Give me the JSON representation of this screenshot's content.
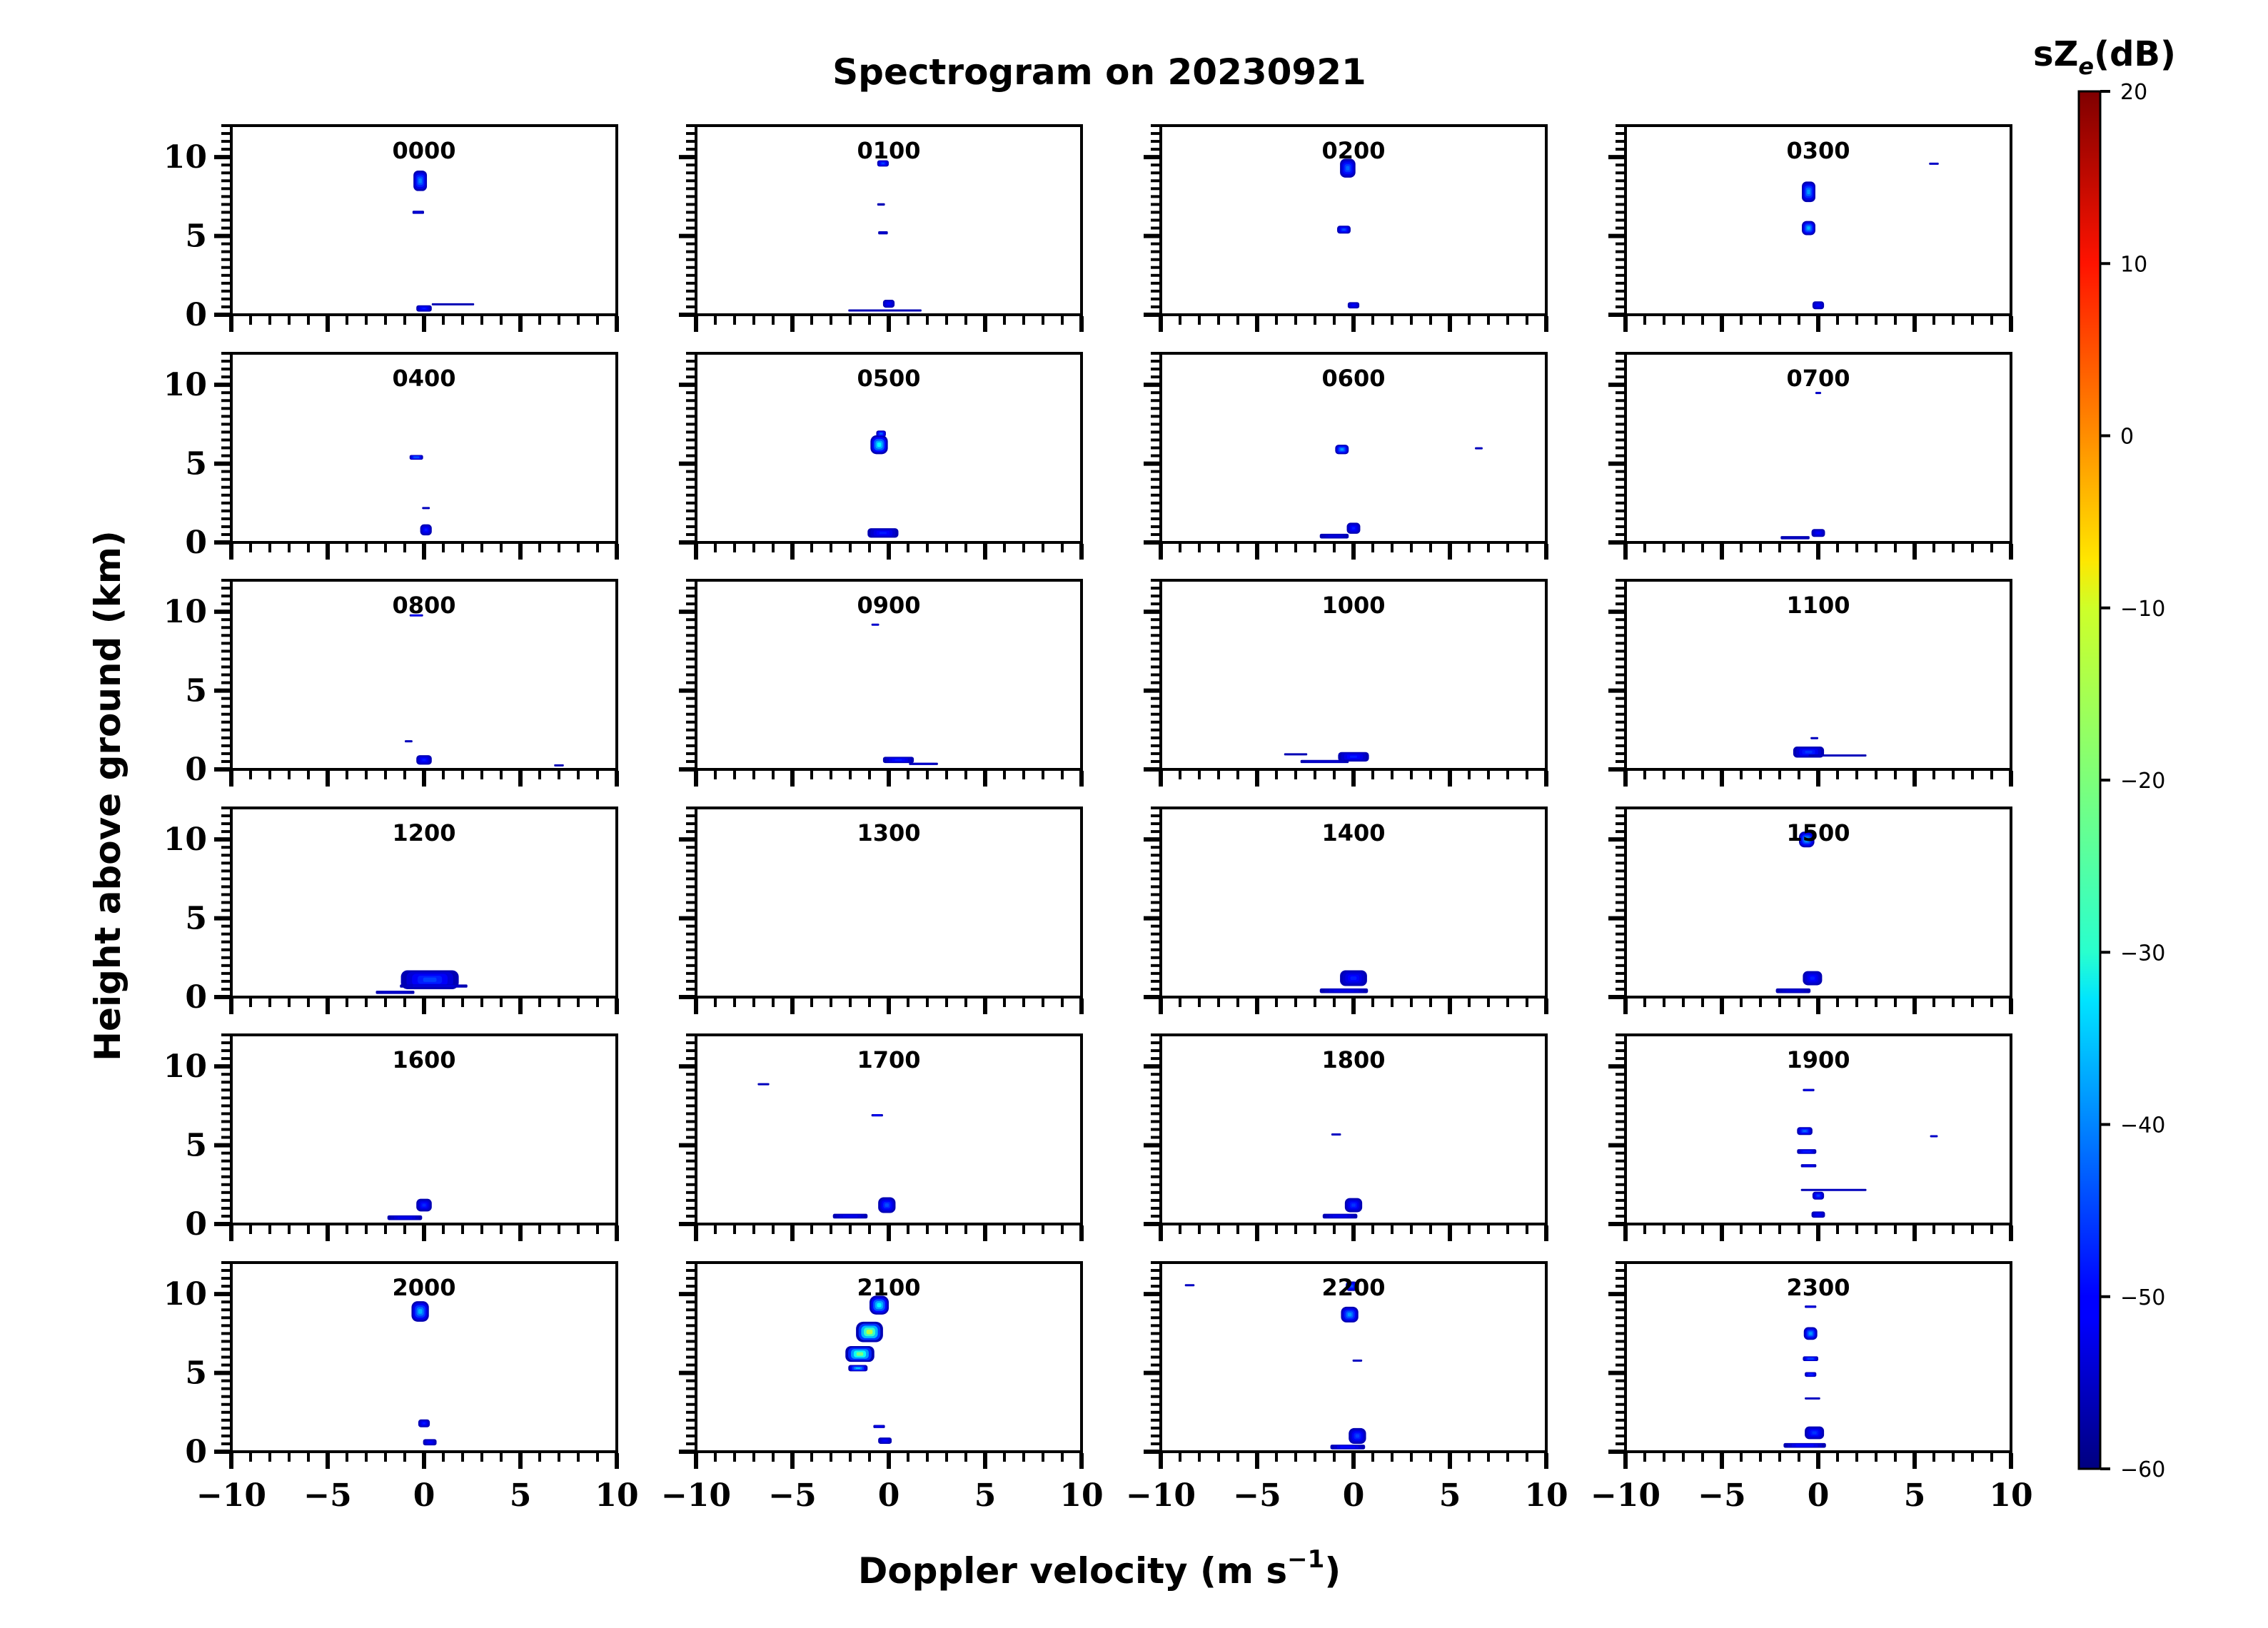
{
  "chart_data": {
    "type": "heatmap",
    "title": "Spectrogram on 20230921",
    "xlabel": "Doppler velocity (m s",
    "xlabel_sup": "−1",
    "xlabel_close": ")",
    "ylabel": "Height above ground (km)",
    "xlim": [
      -10,
      10
    ],
    "ylim": [
      0,
      12
    ],
    "x_ticks": [
      -10,
      -5,
      0,
      5,
      10
    ],
    "x_tick_labels": [
      "−10",
      "−5",
      "0",
      "5",
      "10"
    ],
    "y_ticks": [
      0,
      5,
      10
    ],
    "y_tick_labels": [
      "0",
      "5",
      "10"
    ],
    "colorbar": {
      "label_main": "sZ",
      "label_sub": "e",
      "label_unit": "(dB)",
      "min": -60,
      "max": 20,
      "ticks": [
        20,
        10,
        0,
        -10,
        -20,
        -30,
        -40,
        -50,
        -60
      ],
      "tick_labels": [
        "20",
        "10",
        "0",
        "−10",
        "−20",
        "−30",
        "−40",
        "−50",
        "−60"
      ],
      "colormap": "jet"
    },
    "panels": [
      {
        "time": "0000",
        "blobs": [
          {
            "v": -0.2,
            "h": 8.5,
            "dv": 0.7,
            "dh": 1.3,
            "db": -40
          },
          {
            "v": -0.3,
            "h": 6.5,
            "dv": 0.6,
            "dh": 0.2,
            "db": -50
          },
          {
            "v": 0.0,
            "h": 0.4,
            "dv": 0.8,
            "dh": 0.4,
            "db": -48
          },
          {
            "v": 1.5,
            "h": 0.7,
            "dv": 2.2,
            "dh": 0.06,
            "db": -55
          }
        ]
      },
      {
        "time": "0100",
        "blobs": [
          {
            "v": -0.3,
            "h": 9.6,
            "dv": 0.6,
            "dh": 0.4,
            "db": -45
          },
          {
            "v": -0.4,
            "h": 7.0,
            "dv": 0.4,
            "dh": 0.15,
            "db": -55
          },
          {
            "v": -0.3,
            "h": 5.2,
            "dv": 0.5,
            "dh": 0.2,
            "db": -52
          },
          {
            "v": 0.0,
            "h": 0.7,
            "dv": 0.6,
            "dh": 0.5,
            "db": -50
          },
          {
            "v": -0.2,
            "h": 0.3,
            "dv": 3.8,
            "dh": 0.08,
            "db": -55
          }
        ]
      },
      {
        "time": "0200",
        "blobs": [
          {
            "v": -0.3,
            "h": 9.3,
            "dv": 0.8,
            "dh": 1.2,
            "db": -42
          },
          {
            "v": -0.5,
            "h": 5.4,
            "dv": 0.7,
            "dh": 0.5,
            "db": -44
          },
          {
            "v": 0.0,
            "h": 0.6,
            "dv": 0.6,
            "dh": 0.4,
            "db": -50
          }
        ]
      },
      {
        "time": "0300",
        "blobs": [
          {
            "v": -0.5,
            "h": 7.8,
            "dv": 0.7,
            "dh": 1.3,
            "db": -38
          },
          {
            "v": -0.5,
            "h": 5.5,
            "dv": 0.7,
            "dh": 0.9,
            "db": -36
          },
          {
            "v": 0.0,
            "h": 0.6,
            "dv": 0.6,
            "dh": 0.5,
            "db": -50
          },
          {
            "v": 6.0,
            "h": 9.6,
            "dv": 0.5,
            "dh": 0.1,
            "db": -48
          }
        ]
      },
      {
        "time": "0400",
        "blobs": [
          {
            "v": -0.4,
            "h": 5.4,
            "dv": 0.7,
            "dh": 0.3,
            "db": -40
          },
          {
            "v": 0.1,
            "h": 2.2,
            "dv": 0.4,
            "dh": 0.1,
            "db": -52
          },
          {
            "v": 0.1,
            "h": 0.8,
            "dv": 0.6,
            "dh": 0.7,
            "db": -48
          }
        ]
      },
      {
        "time": "0500",
        "blobs": [
          {
            "v": -0.5,
            "h": 6.2,
            "dv": 0.9,
            "dh": 1.2,
            "db": -30
          },
          {
            "v": -0.4,
            "h": 6.9,
            "dv": 0.5,
            "dh": 0.4,
            "db": -42
          },
          {
            "v": -0.3,
            "h": 0.6,
            "dv": 1.6,
            "dh": 0.6,
            "db": -48
          }
        ]
      },
      {
        "time": "0600",
        "blobs": [
          {
            "v": -0.6,
            "h": 5.9,
            "dv": 0.7,
            "dh": 0.6,
            "db": -38
          },
          {
            "v": 0.0,
            "h": 0.9,
            "dv": 0.7,
            "dh": 0.7,
            "db": -48
          },
          {
            "v": -1.0,
            "h": 0.4,
            "dv": 1.5,
            "dh": 0.3,
            "db": -52
          },
          {
            "v": 6.5,
            "h": 6.0,
            "dv": 0.4,
            "dh": 0.08,
            "db": -52
          }
        ]
      },
      {
        "time": "0700",
        "blobs": [
          {
            "v": 0.0,
            "h": 9.5,
            "dv": 0.3,
            "dh": 0.1,
            "db": -48
          },
          {
            "v": 0.0,
            "h": 0.6,
            "dv": 0.7,
            "dh": 0.5,
            "db": -50
          },
          {
            "v": -1.2,
            "h": 0.3,
            "dv": 1.5,
            "dh": 0.2,
            "db": -54
          }
        ]
      },
      {
        "time": "0800",
        "blobs": [
          {
            "v": -0.4,
            "h": 9.8,
            "dv": 0.7,
            "dh": 0.08,
            "db": -35
          },
          {
            "v": -0.8,
            "h": 1.8,
            "dv": 0.4,
            "dh": 0.1,
            "db": -52
          },
          {
            "v": 0.0,
            "h": 0.6,
            "dv": 0.8,
            "dh": 0.6,
            "db": -48
          },
          {
            "v": 7.0,
            "h": 0.3,
            "dv": 0.5,
            "dh": 0.05,
            "db": -55
          }
        ]
      },
      {
        "time": "0900",
        "blobs": [
          {
            "v": -0.7,
            "h": 9.2,
            "dv": 0.4,
            "dh": 0.1,
            "db": -46
          },
          {
            "v": 0.5,
            "h": 0.6,
            "dv": 1.6,
            "dh": 0.4,
            "db": -48
          },
          {
            "v": 1.8,
            "h": 0.35,
            "dv": 1.5,
            "dh": 0.15,
            "db": -52
          }
        ]
      },
      {
        "time": "1000",
        "blobs": [
          {
            "v": 0.0,
            "h": 0.8,
            "dv": 1.6,
            "dh": 0.6,
            "db": -48
          },
          {
            "v": -1.5,
            "h": 0.5,
            "dv": 2.5,
            "dh": 0.2,
            "db": -52
          },
          {
            "v": -3.0,
            "h": 1.0,
            "dv": 1.2,
            "dh": 0.05,
            "db": -55
          }
        ]
      },
      {
        "time": "1100",
        "blobs": [
          {
            "v": -0.5,
            "h": 1.1,
            "dv": 1.6,
            "dh": 0.7,
            "db": -46
          },
          {
            "v": 1.0,
            "h": 0.9,
            "dv": 3.0,
            "dh": 0.1,
            "db": -52
          },
          {
            "v": -0.2,
            "h": 2.0,
            "dv": 0.4,
            "dh": 0.1,
            "db": -52
          }
        ]
      },
      {
        "time": "1200",
        "blobs": [
          {
            "v": 0.3,
            "h": 1.1,
            "dv": 3.0,
            "dh": 1.2,
            "db": -45
          },
          {
            "v": 0.5,
            "h": 0.7,
            "dv": 3.5,
            "dh": 0.2,
            "db": -50
          },
          {
            "v": -1.5,
            "h": 0.3,
            "dv": 2.0,
            "dh": 0.2,
            "db": -52
          }
        ]
      },
      {
        "time": "1300",
        "blobs": []
      },
      {
        "time": "1400",
        "blobs": [
          {
            "v": 0.0,
            "h": 1.2,
            "dv": 1.4,
            "dh": 1.0,
            "db": -48
          },
          {
            "v": -0.5,
            "h": 0.4,
            "dv": 2.5,
            "dh": 0.3,
            "db": -50
          }
        ]
      },
      {
        "time": "1500",
        "blobs": [
          {
            "v": -0.6,
            "h": 10.0,
            "dv": 0.8,
            "dh": 1.0,
            "db": -36
          },
          {
            "v": -0.3,
            "h": 1.2,
            "dv": 1.0,
            "dh": 0.9,
            "db": -48
          },
          {
            "v": -1.3,
            "h": 0.4,
            "dv": 1.8,
            "dh": 0.3,
            "db": -52
          }
        ]
      },
      {
        "time": "1600",
        "blobs": [
          {
            "v": 0.0,
            "h": 1.2,
            "dv": 0.8,
            "dh": 0.8,
            "db": -47
          },
          {
            "v": -1.0,
            "h": 0.4,
            "dv": 1.8,
            "dh": 0.3,
            "db": -50
          }
        ]
      },
      {
        "time": "1700",
        "blobs": [
          {
            "v": -0.6,
            "h": 6.9,
            "dv": 0.6,
            "dh": 0.15,
            "db": -45
          },
          {
            "v": -6.5,
            "h": 8.9,
            "dv": 0.6,
            "dh": 0.08,
            "db": -52
          },
          {
            "v": -0.1,
            "h": 1.2,
            "dv": 0.9,
            "dh": 1.0,
            "db": -44
          },
          {
            "v": -2.0,
            "h": 0.5,
            "dv": 1.8,
            "dh": 0.3,
            "db": -50
          }
        ]
      },
      {
        "time": "1800",
        "blobs": [
          {
            "v": -0.9,
            "h": 5.7,
            "dv": 0.5,
            "dh": 0.1,
            "db": -50
          },
          {
            "v": 0.0,
            "h": 1.2,
            "dv": 0.9,
            "dh": 0.9,
            "db": -46
          },
          {
            "v": -0.7,
            "h": 0.5,
            "dv": 1.8,
            "dh": 0.3,
            "db": -50
          }
        ]
      },
      {
        "time": "1900",
        "blobs": [
          {
            "v": -0.5,
            "h": 8.5,
            "dv": 0.6,
            "dh": 0.15,
            "db": -47
          },
          {
            "v": -0.7,
            "h": 5.9,
            "dv": 0.8,
            "dh": 0.5,
            "db": -42
          },
          {
            "v": -0.6,
            "h": 4.6,
            "dv": 1.0,
            "dh": 0.3,
            "db": -46
          },
          {
            "v": -0.5,
            "h": 3.7,
            "dv": 0.8,
            "dh": 0.2,
            "db": -48
          },
          {
            "v": 0.0,
            "h": 1.8,
            "dv": 0.6,
            "dh": 0.5,
            "db": -45
          },
          {
            "v": 0.0,
            "h": 0.6,
            "dv": 0.7,
            "dh": 0.4,
            "db": -50
          },
          {
            "v": 0.8,
            "h": 2.2,
            "dv": 3.4,
            "dh": 0.06,
            "db": -52
          },
          {
            "v": 6.0,
            "h": 5.6,
            "dv": 0.4,
            "dh": 0.08,
            "db": -48
          }
        ]
      },
      {
        "time": "2000",
        "blobs": [
          {
            "v": -0.2,
            "h": 8.9,
            "dv": 0.9,
            "dh": 1.3,
            "db": -36
          },
          {
            "v": 0.0,
            "h": 1.8,
            "dv": 0.6,
            "dh": 0.5,
            "db": -48
          },
          {
            "v": 0.3,
            "h": 0.6,
            "dv": 0.7,
            "dh": 0.4,
            "db": -50
          }
        ]
      },
      {
        "time": "2100",
        "blobs": [
          {
            "v": -0.5,
            "h": 9.3,
            "dv": 1.0,
            "dh": 1.2,
            "db": -30
          },
          {
            "v": -1.0,
            "h": 7.6,
            "dv": 1.4,
            "dh": 1.3,
            "db": -15
          },
          {
            "v": -1.5,
            "h": 6.2,
            "dv": 1.5,
            "dh": 1.0,
            "db": -20
          },
          {
            "v": -1.6,
            "h": 5.3,
            "dv": 1.0,
            "dh": 0.4,
            "db": -35
          },
          {
            "v": -0.5,
            "h": 1.6,
            "dv": 0.6,
            "dh": 0.2,
            "db": -48
          },
          {
            "v": -0.2,
            "h": 0.7,
            "dv": 0.7,
            "dh": 0.4,
            "db": -50
          }
        ]
      },
      {
        "time": "2200",
        "blobs": [
          {
            "v": -0.1,
            "h": 10.5,
            "dv": 0.6,
            "dh": 0.6,
            "db": -44
          },
          {
            "v": -0.2,
            "h": 8.7,
            "dv": 0.9,
            "dh": 1.0,
            "db": -38
          },
          {
            "v": 0.2,
            "h": 5.8,
            "dv": 0.5,
            "dh": 0.1,
            "db": -50
          },
          {
            "v": -8.5,
            "h": 10.6,
            "dv": 0.5,
            "dh": 0.06,
            "db": -50
          },
          {
            "v": 0.2,
            "h": 1.0,
            "dv": 0.9,
            "dh": 1.0,
            "db": -45
          },
          {
            "v": -0.3,
            "h": 0.3,
            "dv": 1.8,
            "dh": 0.3,
            "db": -48
          }
        ]
      },
      {
        "time": "2300",
        "blobs": [
          {
            "v": -0.4,
            "h": 9.2,
            "dv": 0.6,
            "dh": 0.15,
            "db": -48
          },
          {
            "v": -0.4,
            "h": 7.5,
            "dv": 0.7,
            "dh": 0.8,
            "db": -38
          },
          {
            "v": -0.4,
            "h": 5.9,
            "dv": 0.8,
            "dh": 0.3,
            "db": -42
          },
          {
            "v": -0.4,
            "h": 4.9,
            "dv": 0.6,
            "dh": 0.3,
            "db": -45
          },
          {
            "v": -0.3,
            "h": 3.4,
            "dv": 0.8,
            "dh": 0.1,
            "db": -50
          },
          {
            "v": -0.2,
            "h": 1.2,
            "dv": 1.0,
            "dh": 0.8,
            "db": -46
          },
          {
            "v": -0.7,
            "h": 0.4,
            "dv": 2.2,
            "dh": 0.3,
            "db": -48
          }
        ]
      }
    ]
  }
}
